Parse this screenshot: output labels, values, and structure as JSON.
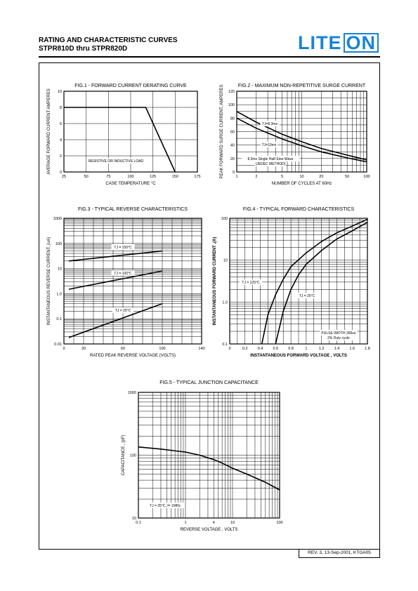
{
  "header": {
    "title_line1": "RATING AND CHARACTERISTIC CURVES",
    "title_line2": "STPR810D thru STPR820D",
    "logo_text1": "LITE",
    "logo_text2": "ON",
    "logo_color": "#1a83d6"
  },
  "footer": {
    "revision": "REV. 3, 13-Sep-2001, KTGA05"
  },
  "chart_data": [
    {
      "id": "fig1",
      "type": "line",
      "title": "FIG.1 - FORWARD CURRENT DERATING CURVE",
      "xlabel": "CASE TEMPERATURE °C",
      "ylabel": "AVERAGE FORWARD CURRENT AMPERES",
      "xlim": [
        25,
        175
      ],
      "ylim": [
        0,
        10
      ],
      "xticks": [
        25,
        50,
        75,
        100,
        125,
        150,
        175
      ],
      "yticks": [
        0,
        2,
        4,
        6,
        8,
        10
      ],
      "series": [
        {
          "x": [
            25,
            117,
            150
          ],
          "y": [
            8,
            8,
            0
          ]
        }
      ],
      "annotations": [
        "RESISTIVE OR INDUCTIVE LOAD"
      ]
    },
    {
      "id": "fig2",
      "type": "line",
      "title": "FIG.2 - MAXIMUM NON-REPETITIVE SURGE CURRENT",
      "xlabel": "NUMBER OF CYCLES AT 60Hz",
      "ylabel": "PEAK FORWARD SURGE CURRENT, AMPERES",
      "xscale": "log",
      "xlim": [
        1,
        100
      ],
      "ylim": [
        0,
        120
      ],
      "xticks": [
        1,
        2,
        5,
        10,
        20,
        50,
        100
      ],
      "yticks": [
        0,
        20,
        40,
        60,
        80,
        100,
        120
      ],
      "series": [
        {
          "name": "TJ=8.3ms",
          "x": [
            1,
            2,
            5,
            10,
            20,
            50,
            100
          ],
          "y": [
            90,
            74,
            56,
            45,
            35,
            25,
            18
          ]
        },
        {
          "name": "TJ=10ms",
          "x": [
            1,
            2,
            5,
            10,
            20,
            50,
            100
          ],
          "y": [
            80,
            65,
            49,
            39,
            30,
            21,
            15
          ]
        }
      ],
      "annotations": [
        "TJ=8.3ms",
        "TJ=10ms",
        "8.3ms Single Half-Sine-Wave",
        "(JEDEC METHOD)"
      ]
    },
    {
      "id": "fig3",
      "type": "line",
      "title": "FIG.3 - TYPICAL REVERSE CHARACTERISTICS",
      "xlabel": "RATED PEAK REVERSE VOLTAGE (VOLTS)",
      "ylabel": "INSTANTANEOUS REVERSE CURRENT, (uA)",
      "yscale": "log",
      "xlim": [
        0,
        140
      ],
      "ylim": [
        0.01,
        1000
      ],
      "xticks": [
        0,
        20,
        60,
        100,
        140
      ],
      "yticks": [
        0.01,
        0.1,
        1.0,
        10,
        100,
        1000
      ],
      "series": [
        {
          "name": "TJ = 150°C",
          "x": [
            5,
            100
          ],
          "y": [
            20,
            50
          ]
        },
        {
          "name": "TJ = 100°C",
          "x": [
            5,
            100
          ],
          "y": [
            1.5,
            8
          ]
        },
        {
          "name": "TJ = 25°C",
          "x": [
            5,
            100
          ],
          "y": [
            0.018,
            0.4
          ]
        }
      ],
      "annotations": [
        "TJ = 150°C",
        "TJ = 100°C",
        "TJ = 25°C"
      ]
    },
    {
      "id": "fig4",
      "type": "line",
      "title": "FIG.4 - TYPICAL FORWARD CHARACTERISTICS",
      "xlabel": "INSTANTANEOUS FORWARD VOLTAGE , VOLTS",
      "ylabel": "INSTANTANEOUS FORWARD CURRENT ,(A)",
      "yscale": "log",
      "xlim": [
        0,
        1.8
      ],
      "ylim": [
        0.1,
        100
      ],
      "xticks": [
        0,
        0.2,
        0.4,
        0.6,
        0.8,
        1.0,
        1.2,
        1.4,
        1.6,
        1.8
      ],
      "yticks": [
        0.1,
        1.0,
        10,
        100
      ],
      "series": [
        {
          "name": "TJ = 125°C",
          "x": [
            0.42,
            0.5,
            0.6,
            0.7,
            0.8,
            1.0,
            1.2,
            1.4,
            1.6,
            1.8
          ],
          "y": [
            0.1,
            0.5,
            1.5,
            3.5,
            7,
            15,
            28,
            45,
            65,
            95
          ]
        },
        {
          "name": "TJ = 25°C",
          "x": [
            0.6,
            0.7,
            0.8,
            0.9,
            1.0,
            1.2,
            1.4,
            1.6,
            1.8
          ],
          "y": [
            0.1,
            0.6,
            2,
            4.5,
            8,
            17,
            32,
            50,
            80
          ]
        }
      ],
      "annotations": [
        "TJ = 125°C",
        "TJ = 25°C",
        "PULSE WIDTH 300us",
        "2% Duty cycle"
      ]
    },
    {
      "id": "fig5",
      "type": "line",
      "title": "FIG.5 - TYPICAL JUNCTION CAPACITANCE",
      "xlabel": "REVERSE VOLTAGE , VOLTS",
      "ylabel": "CAPACITANCE , (pF)",
      "xscale": "log",
      "yscale": "log",
      "xlim": [
        0.1,
        100
      ],
      "ylim": [
        10,
        1000
      ],
      "xticks": [
        0.1,
        1,
        4,
        10,
        100
      ],
      "yticks": [
        10,
        100,
        1000
      ],
      "series": [
        {
          "x": [
            0.1,
            0.3,
            1,
            2,
            4,
            6,
            10,
            20,
            50,
            100
          ],
          "y": [
            135,
            125,
            112,
            100,
            85,
            75,
            62,
            50,
            37,
            28
          ]
        }
      ],
      "annotations": [
        "TJ = 25°C, f= 1MHz"
      ]
    }
  ]
}
